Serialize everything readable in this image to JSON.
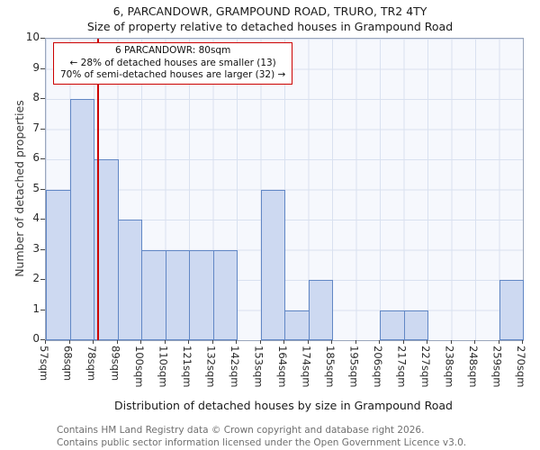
{
  "title": "6, PARCANDOWR, GRAMPOUND ROAD, TRURO, TR2 4TY",
  "subtitle": "Size of property relative to detached houses in Grampound Road",
  "chart_data": {
    "type": "bar",
    "categories": [
      "57sqm",
      "68sqm",
      "78sqm",
      "89sqm",
      "100sqm",
      "110sqm",
      "121sqm",
      "132sqm",
      "142sqm",
      "153sqm",
      "164sqm",
      "174sqm",
      "185sqm",
      "195sqm",
      "206sqm",
      "217sqm",
      "227sqm",
      "238sqm",
      "248sqm",
      "259sqm",
      "270sqm"
    ],
    "values": [
      5,
      8,
      6,
      4,
      3,
      3,
      3,
      3,
      0,
      5,
      1,
      2,
      0,
      0,
      1,
      1,
      0,
      0,
      0,
      2
    ],
    "title": "6, PARCANDOWR, GRAMPOUND ROAD, TRURO, TR2 4TY",
    "xlabel": "Distribution of detached houses by size in Grampound Road",
    "ylabel": "Number of detached properties",
    "ylim": [
      0,
      10
    ],
    "yticks": [
      0,
      1,
      2,
      3,
      4,
      5,
      6,
      7,
      8,
      9,
      10
    ],
    "grid": true,
    "legend": "none",
    "bar_color": "#cdd9f1",
    "bar_border_color": "#6187c5",
    "marker_value_sqm": 80,
    "marker_color": "#cc0000"
  },
  "annotation": {
    "line1": "6 PARCANDOWR: 80sqm",
    "line2": "← 28% of detached houses are smaller (13)",
    "line3": "70% of semi-detached houses are larger (32) →"
  },
  "footer": {
    "line1": "Contains HM Land Registry data © Crown copyright and database right 2026.",
    "line2": "Contains public sector information licensed under the Open Government Licence v3.0."
  }
}
